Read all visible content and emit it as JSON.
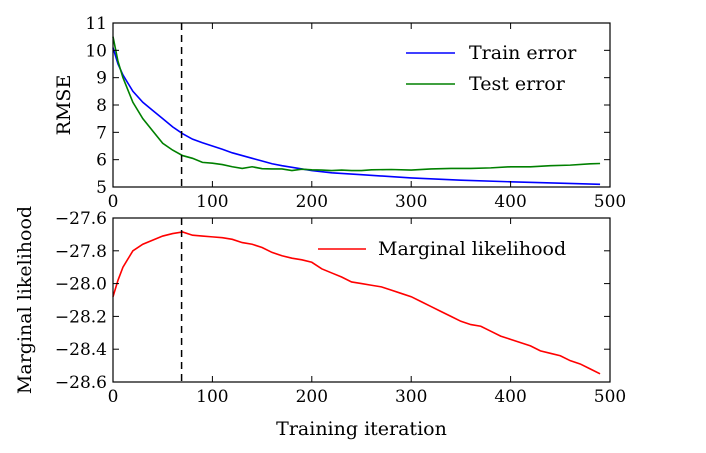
{
  "chart_data": [
    {
      "type": "line",
      "title": "",
      "xlabel": "",
      "ylabel": "RMSE",
      "xlim": [
        0,
        500
      ],
      "ylim": [
        5,
        11
      ],
      "xticks": [
        "0",
        "100",
        "200",
        "300",
        "400",
        "500"
      ],
      "yticks": [
        "5",
        "6",
        "7",
        "8",
        "9",
        "10",
        "11"
      ],
      "xtick_values": [
        0,
        100,
        200,
        300,
        400,
        500
      ],
      "ytick_values": [
        5,
        6,
        7,
        8,
        9,
        10,
        11
      ],
      "legend_position": "top-right",
      "grid": false,
      "vline_x": 69,
      "series": [
        {
          "name": "Train error",
          "color": "#0000ff",
          "x": [
            0,
            5,
            10,
            20,
            30,
            40,
            50,
            60,
            70,
            80,
            90,
            100,
            110,
            120,
            130,
            140,
            150,
            160,
            170,
            180,
            190,
            200,
            220,
            250,
            300,
            350,
            400,
            450,
            490
          ],
          "y": [
            10.1,
            9.5,
            9.1,
            8.5,
            8.1,
            7.8,
            7.5,
            7.2,
            6.95,
            6.75,
            6.62,
            6.5,
            6.38,
            6.25,
            6.15,
            6.05,
            5.95,
            5.85,
            5.78,
            5.72,
            5.66,
            5.6,
            5.52,
            5.45,
            5.33,
            5.25,
            5.19,
            5.14,
            5.1
          ]
        },
        {
          "name": "Test error",
          "color": "#008000",
          "x": [
            0,
            5,
            10,
            20,
            30,
            40,
            50,
            60,
            70,
            80,
            90,
            100,
            110,
            120,
            130,
            140,
            150,
            160,
            170,
            180,
            190,
            200,
            210,
            220,
            230,
            240,
            250,
            260,
            280,
            300,
            320,
            340,
            360,
            380,
            400,
            420,
            440,
            460,
            480,
            490
          ],
          "y": [
            10.5,
            9.6,
            9.0,
            8.1,
            7.5,
            7.05,
            6.6,
            6.35,
            6.15,
            6.05,
            5.9,
            5.87,
            5.82,
            5.74,
            5.68,
            5.74,
            5.67,
            5.66,
            5.66,
            5.6,
            5.65,
            5.63,
            5.62,
            5.6,
            5.62,
            5.6,
            5.6,
            5.63,
            5.64,
            5.62,
            5.66,
            5.68,
            5.68,
            5.7,
            5.74,
            5.74,
            5.78,
            5.8,
            5.85,
            5.86
          ]
        }
      ]
    },
    {
      "type": "line",
      "title": "",
      "xlabel": "Training iteration",
      "ylabel": "Marginal likelihood",
      "xlim": [
        0,
        500
      ],
      "ylim": [
        -28.6,
        -27.6
      ],
      "xticks": [
        "0",
        "100",
        "200",
        "300",
        "400",
        "500"
      ],
      "yticks": [
        "−27.6",
        "−27.8",
        "−28.0",
        "−28.2",
        "−28.4",
        "−28.6"
      ],
      "xtick_values": [
        0,
        100,
        200,
        300,
        400,
        500
      ],
      "ytick_values": [
        -27.6,
        -27.8,
        -28.0,
        -28.2,
        -28.4,
        -28.6
      ],
      "legend_position": "top-right",
      "grid": false,
      "vline_x": 69,
      "series": [
        {
          "name": "Marginal likelihood",
          "color": "#ff0000",
          "x": [
            0,
            5,
            10,
            20,
            30,
            40,
            50,
            60,
            70,
            80,
            90,
            100,
            110,
            120,
            130,
            140,
            150,
            160,
            170,
            180,
            190,
            200,
            210,
            220,
            230,
            240,
            250,
            260,
            270,
            280,
            290,
            300,
            310,
            320,
            330,
            340,
            350,
            360,
            370,
            380,
            390,
            400,
            410,
            420,
            430,
            440,
            450,
            460,
            470,
            480,
            490
          ],
          "y": [
            -28.08,
            -27.98,
            -27.9,
            -27.8,
            -27.76,
            -27.735,
            -27.71,
            -27.695,
            -27.685,
            -27.705,
            -27.71,
            -27.715,
            -27.72,
            -27.73,
            -27.75,
            -27.76,
            -27.78,
            -27.81,
            -27.83,
            -27.845,
            -27.855,
            -27.87,
            -27.91,
            -27.935,
            -27.96,
            -27.99,
            -28.0,
            -28.01,
            -28.02,
            -28.04,
            -28.06,
            -28.08,
            -28.11,
            -28.14,
            -28.17,
            -28.2,
            -28.23,
            -28.25,
            -28.26,
            -28.29,
            -28.32,
            -28.34,
            -28.36,
            -28.38,
            -28.41,
            -28.425,
            -28.44,
            -28.47,
            -28.49,
            -28.52,
            -28.55
          ]
        }
      ]
    }
  ]
}
